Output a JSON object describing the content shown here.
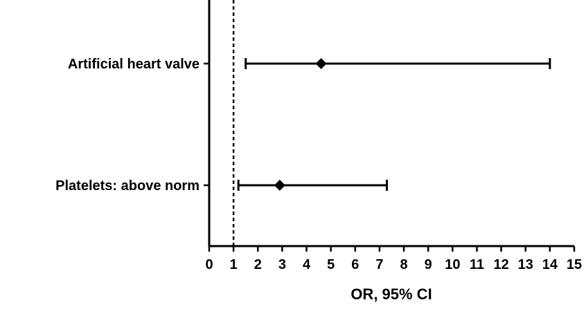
{
  "chart_data": {
    "type": "forest",
    "xlabel": "OR, 95% CI",
    "xlim": [
      0,
      15
    ],
    "xticks": [
      0,
      1,
      2,
      3,
      4,
      5,
      6,
      7,
      8,
      9,
      10,
      11,
      12,
      13,
      14,
      15
    ],
    "reference_line": 1,
    "rows": [
      {
        "label": "Artificial heart valve",
        "or": 4.6,
        "ci_low": 1.5,
        "ci_high": 14.0
      },
      {
        "label": "Platelets: above norm",
        "or": 2.9,
        "ci_low": 1.2,
        "ci_high": 7.3
      }
    ],
    "colors": {
      "line": "#000000",
      "marker": "#000000"
    }
  }
}
